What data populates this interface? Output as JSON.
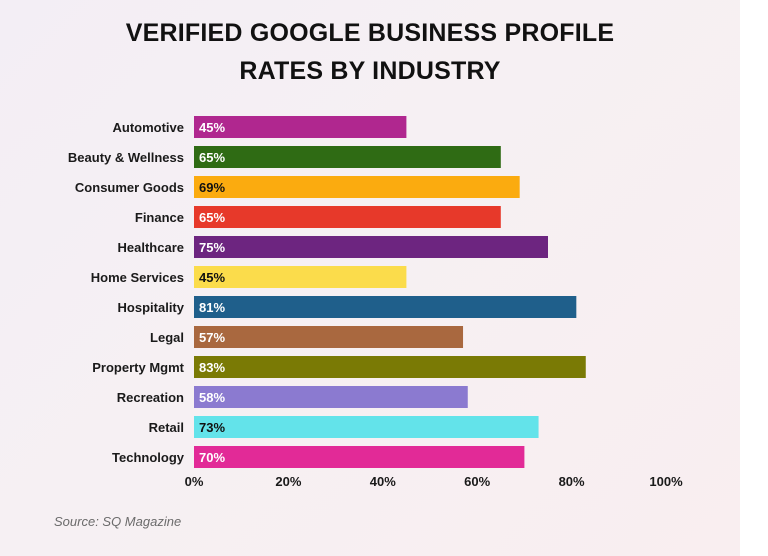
{
  "title_line1": "VERIFIED GOOGLE BUSINESS PROFILE",
  "title_line2": "RATES BY INDUSTRY",
  "source": "Source: SQ Magazine",
  "chart_data": {
    "type": "bar",
    "orientation": "horizontal",
    "categories": [
      "Automotive",
      "Beauty & Wellness",
      "Consumer Goods",
      "Finance",
      "Healthcare",
      "Home Services",
      "Hospitality",
      "Legal",
      "Property Mgmt",
      "Recreation",
      "Retail",
      "Technology"
    ],
    "values": [
      45,
      65,
      69,
      65,
      75,
      45,
      81,
      57,
      83,
      58,
      73,
      70
    ],
    "value_labels": [
      "45%",
      "65%",
      "69%",
      "65%",
      "75%",
      "45%",
      "81%",
      "57%",
      "83%",
      "58%",
      "73%",
      "70%"
    ],
    "colors": [
      "#b0278f",
      "#2f6b14",
      "#fbab0f",
      "#e7392a",
      "#6d2580",
      "#fbdc4b",
      "#1f5f8b",
      "#a9683f",
      "#7a7a05",
      "#8b7ad0",
      "#63e3ea",
      "#e22a97"
    ],
    "label_colors": [
      "#ffffff",
      "#ffffff",
      "#111111",
      "#ffffff",
      "#ffffff",
      "#111111",
      "#ffffff",
      "#ffffff",
      "#ffffff",
      "#ffffff",
      "#111111",
      "#ffffff"
    ],
    "xlim": [
      0,
      100
    ],
    "xticks": [
      0,
      20,
      40,
      60,
      80,
      100
    ],
    "xtick_labels": [
      "0%",
      "20%",
      "40%",
      "60%",
      "80%",
      "100%"
    ],
    "grid": false,
    "legend": "none"
  }
}
